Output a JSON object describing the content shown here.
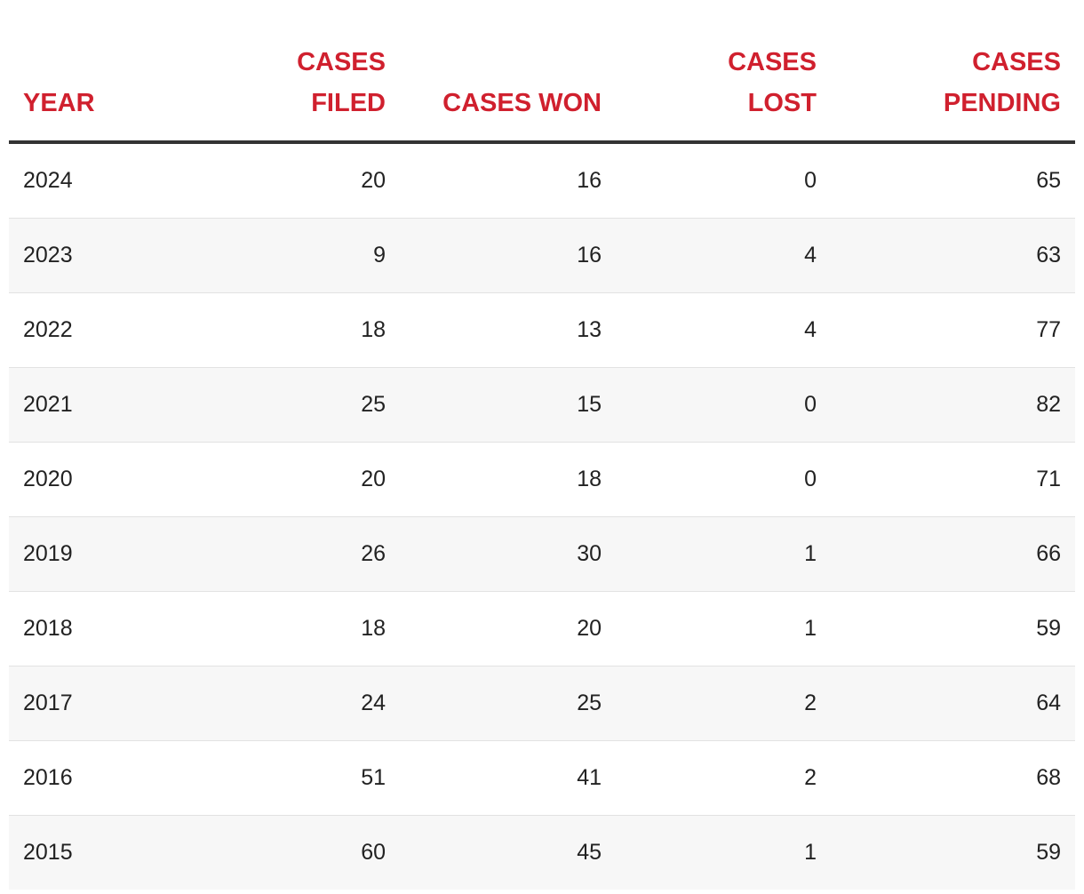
{
  "columns": {
    "year": [
      "YEAR"
    ],
    "filed": [
      "CASES",
      "FILED"
    ],
    "won": [
      "CASES WON"
    ],
    "lost": [
      "CASES",
      "LOST"
    ],
    "pending": [
      "CASES",
      "PENDING"
    ]
  },
  "rows": [
    {
      "year": "2024",
      "filed": "20",
      "won": "16",
      "lost": "0",
      "pending": "65"
    },
    {
      "year": "2023",
      "filed": "9",
      "won": "16",
      "lost": "4",
      "pending": "63"
    },
    {
      "year": "2022",
      "filed": "18",
      "won": "13",
      "lost": "4",
      "pending": "77"
    },
    {
      "year": "2021",
      "filed": "25",
      "won": "15",
      "lost": "0",
      "pending": "82"
    },
    {
      "year": "2020",
      "filed": "20",
      "won": "18",
      "lost": "0",
      "pending": "71"
    },
    {
      "year": "2019",
      "filed": "26",
      "won": "30",
      "lost": "1",
      "pending": "66"
    },
    {
      "year": "2018",
      "filed": "18",
      "won": "20",
      "lost": "1",
      "pending": "59"
    },
    {
      "year": "2017",
      "filed": "24",
      "won": "25",
      "lost": "2",
      "pending": "64"
    },
    {
      "year": "2016",
      "filed": "51",
      "won": "41",
      "lost": "2",
      "pending": "68"
    },
    {
      "year": "2015",
      "filed": "60",
      "won": "45",
      "lost": "1",
      "pending": "59"
    }
  ],
  "colors": {
    "header_text": "#d0202e",
    "body_text": "#222222",
    "header_rule": "#333333",
    "row_stripe": "#f7f7f7"
  }
}
